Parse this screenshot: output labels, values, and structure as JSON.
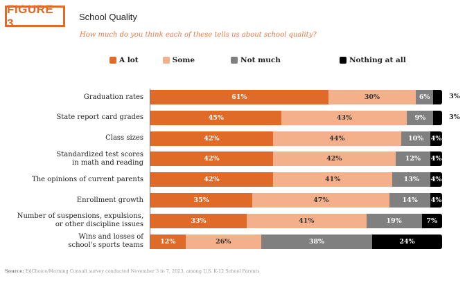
{
  "figure_label": "FIGURE 3",
  "title": "School Quality",
  "subtitle": "How much do you think each of these tells us about school quality?",
  "source_label": "Source:",
  "source_text": "EdChoice/Morning Consult survey conducted November 3 to 7, 2023, among U.S. K-12 School Parents",
  "chart_data": {
    "type": "bar",
    "orientation": "horizontal",
    "stacked": true,
    "percent_stacked": true,
    "legend_placement": "top",
    "categories": [
      "Graduation rates",
      "State report card grades",
      "Class sizes",
      "Standardized test scores in math and reading",
      "The opinions of current parents",
      "Enrollment growth",
      "Number of suspensions, expulsions, or other discipline issues",
      "Wins and losses of school's sports teams"
    ],
    "category_lines": [
      [
        "Graduation rates"
      ],
      [
        "State report card grades"
      ],
      [
        "Class sizes"
      ],
      [
        "Standardized test scores",
        "in math and reading"
      ],
      [
        "The opinions of current parents"
      ],
      [
        "Enrollment growth"
      ],
      [
        "Number of suspensions, expulsions,",
        "or other discipline issues"
      ],
      [
        "Wins and losses of",
        "school's sports teams"
      ]
    ],
    "series": [
      {
        "name": "A lot",
        "color": "#e06a28",
        "label_color": "#ffffff",
        "values": [
          61,
          45,
          42,
          42,
          42,
          35,
          33,
          12
        ]
      },
      {
        "name": "Some",
        "color": "#f4b08a",
        "label_color": "#333333",
        "values": [
          30,
          43,
          44,
          42,
          41,
          47,
          41,
          26
        ]
      },
      {
        "name": "Not much",
        "color": "#808080",
        "label_color": "#ffffff",
        "values": [
          6,
          9,
          10,
          12,
          13,
          14,
          19,
          38
        ]
      },
      {
        "name": "Nothing at all",
        "color": "#000000",
        "label_color": "#ffffff",
        "values": [
          3,
          3,
          4,
          4,
          4,
          4,
          7,
          24
        ]
      }
    ],
    "data_label_suffix": "%",
    "outside_label_threshold": 3,
    "xlim": [
      0,
      100
    ]
  }
}
